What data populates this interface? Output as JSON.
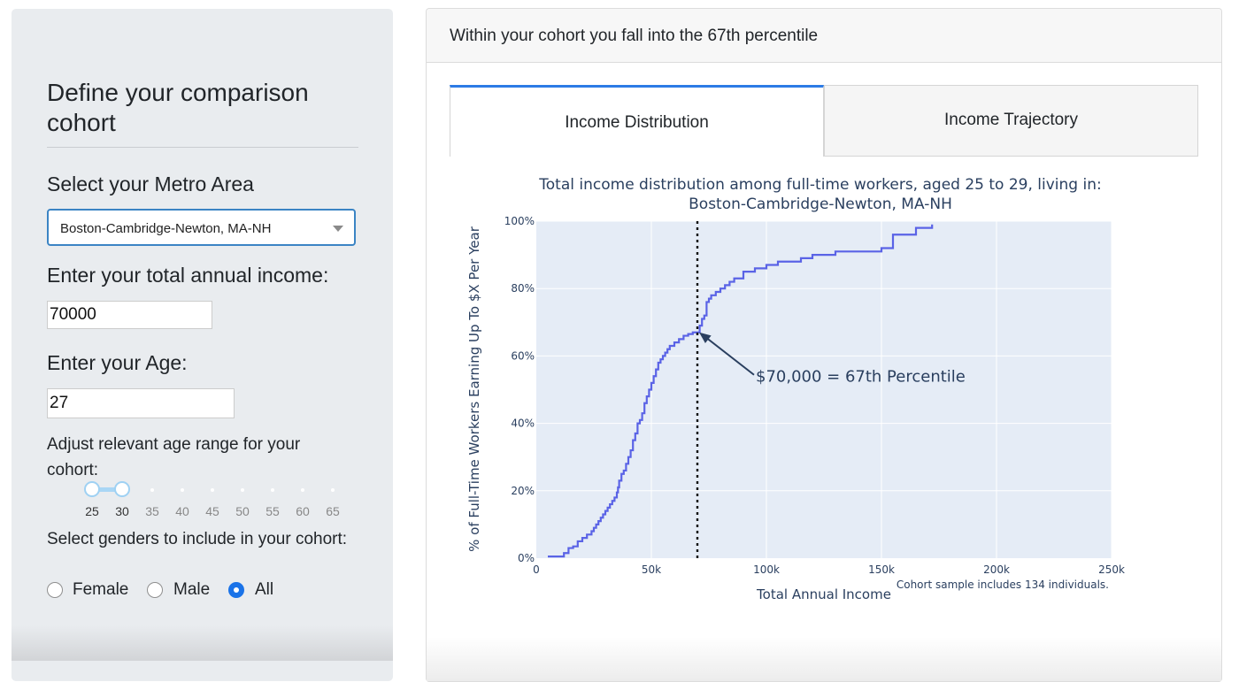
{
  "sidebar": {
    "title": "Define your comparison cohort",
    "metro_label": "Select your Metro Area",
    "metro_value": "Boston-Cambridge-Newton, MA-NH",
    "income_label": "Enter your total annual income:",
    "income_value": "70000",
    "age_label": "Enter your Age:",
    "age_value": "27",
    "age_range_label": "Adjust relevant age range for your cohort:",
    "age_slider": {
      "ticks": [
        "25",
        "30",
        "35",
        "40",
        "45",
        "50",
        "55",
        "60",
        "65"
      ],
      "selected_low": "25",
      "selected_high": "30"
    },
    "gender_label": "Select genders to include in your cohort:",
    "gender_options": [
      {
        "label": "Female",
        "checked": false
      },
      {
        "label": "Male",
        "checked": false
      },
      {
        "label": "All",
        "checked": true
      }
    ]
  },
  "main": {
    "header_text": "Within your cohort you fall into the 67th percentile",
    "tabs": [
      {
        "label": "Income Distribution",
        "active": true
      },
      {
        "label": "Income Trajectory",
        "active": false
      }
    ]
  },
  "chart_data": {
    "type": "line",
    "title": "Total income distribution among full-time workers, aged 25 to 29, living in:",
    "subtitle": "Boston-Cambridge-Newton, MA-NH",
    "xlabel": "Total Annual Income",
    "ylabel": "% of Full-Time Workers Earning Up To $X Per Year",
    "xlim": [
      0,
      250000
    ],
    "ylim": [
      0,
      100
    ],
    "x_ticks": [
      "0",
      "50k",
      "100k",
      "150k",
      "200k",
      "250k"
    ],
    "y_ticks": [
      "0%",
      "20%",
      "40%",
      "60%",
      "80%",
      "100%"
    ],
    "grid": true,
    "line_color": "#5a63e6",
    "plot_bg": "#e5ecf6",
    "vline_x": 70000,
    "annotation": {
      "text": "$70,000 = 67th Percentile",
      "x": 70000,
      "y": 67
    },
    "footnote": "Cohort sample includes 134 individuals.",
    "series": [
      {
        "x": [
          5000,
          12000,
          14000,
          16000,
          18000,
          20000,
          22000,
          24000,
          25000,
          26000,
          27000,
          28000,
          29000,
          30000,
          31000,
          32000,
          33000,
          34000,
          35000,
          35500,
          36000,
          37000,
          38000,
          39000,
          40000,
          41000,
          42000,
          43000,
          44000,
          45000,
          46000,
          47000,
          48000,
          49000,
          50000,
          51000,
          52000,
          53000,
          54000,
          55000,
          56000,
          57000,
          58000,
          60000,
          62000,
          64000,
          66000,
          68000,
          70000,
          71000,
          72000,
          73000,
          74000,
          75000,
          76000,
          78000,
          80000,
          82000,
          84000,
          86000,
          90000,
          95000,
          100000,
          105000,
          115000,
          120000,
          130000,
          150000,
          155000,
          165000,
          172000
        ],
        "y": [
          0.5,
          1.5,
          3,
          3.5,
          5,
          6,
          7,
          8,
          9,
          10,
          11,
          12,
          13,
          14,
          15,
          16,
          17,
          18,
          19.5,
          21,
          23,
          25,
          26,
          28,
          30,
          32,
          35,
          37,
          40,
          41,
          43,
          46,
          48,
          50,
          52,
          54,
          56,
          58,
          59,
          60,
          61,
          62,
          63,
          64,
          65,
          66,
          66.5,
          67,
          67,
          69,
          71,
          72,
          76,
          77,
          78,
          79,
          80,
          81,
          82,
          83,
          85,
          86,
          87,
          88,
          89,
          90,
          91,
          92,
          96,
          98,
          99
        ]
      }
    ]
  }
}
